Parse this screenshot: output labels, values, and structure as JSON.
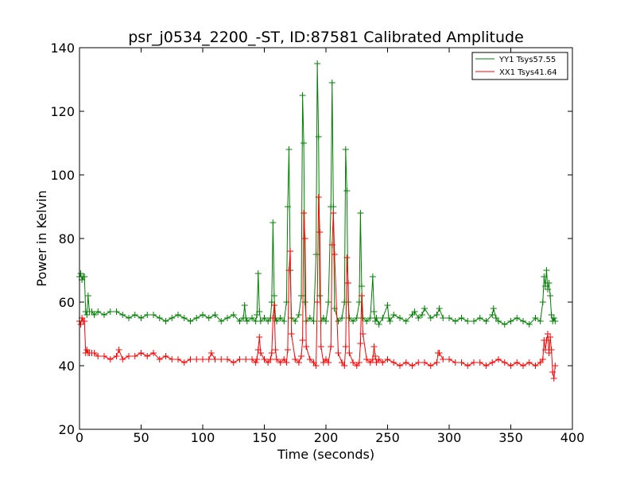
{
  "chart_data": {
    "type": "line",
    "title": "psr_j0534_2200_-ST, ID:87581 Calibrated Amplitude",
    "xlabel": "Time (seconds)",
    "ylabel": "Power in Kelvin",
    "xlim": [
      0,
      400
    ],
    "ylim": [
      20,
      140
    ],
    "xticks": [
      0,
      50,
      100,
      150,
      200,
      250,
      300,
      350,
      400
    ],
    "yticks": [
      20,
      40,
      60,
      80,
      100,
      120,
      140
    ],
    "xtick_labels": [
      "0",
      "50",
      "100",
      "150",
      "200",
      "250",
      "300",
      "350",
      "400"
    ],
    "ytick_labels": [
      "20",
      "40",
      "60",
      "80",
      "100",
      "120",
      "140"
    ],
    "grid": false,
    "legend_position": "top-right",
    "marker": "+",
    "series": [
      {
        "name": "YY1 Tsys57.55",
        "color": "#008000",
        "x": [
          0,
          1,
          2,
          3,
          4,
          5,
          6,
          7,
          8,
          10,
          12,
          15,
          20,
          25,
          30,
          35,
          40,
          45,
          50,
          55,
          60,
          65,
          70,
          75,
          80,
          85,
          90,
          95,
          100,
          105,
          110,
          115,
          120,
          125,
          130,
          133,
          134,
          135,
          136,
          140,
          143,
          144,
          145,
          146,
          147,
          150,
          153,
          155,
          156,
          157,
          158,
          159,
          160,
          163,
          166,
          168,
          169,
          170,
          171,
          172,
          175,
          178,
          180,
          181,
          182,
          183,
          184,
          187,
          190,
          192,
          193,
          194,
          195,
          196,
          198,
          200,
          202,
          204,
          205,
          206,
          207,
          210,
          213,
          215,
          216,
          217,
          218,
          219,
          222,
          225,
          227,
          228,
          229,
          230,
          233,
          236,
          238,
          239,
          240,
          241,
          243,
          246,
          250,
          251,
          252,
          255,
          260,
          265,
          270,
          272,
          275,
          278,
          280,
          285,
          290,
          292,
          295,
          300,
          305,
          310,
          315,
          320,
          325,
          330,
          335,
          336,
          338,
          340,
          345,
          350,
          355,
          360,
          365,
          370,
          374,
          376,
          377,
          378,
          379,
          380,
          381,
          382,
          383,
          384,
          385,
          386
        ],
        "y": [
          68,
          69,
          67,
          68,
          68,
          57,
          56,
          62,
          57,
          57,
          56,
          57,
          56,
          57,
          57,
          56,
          55,
          56,
          55,
          56,
          56,
          55,
          54,
          55,
          56,
          55,
          54,
          55,
          56,
          55,
          56,
          54,
          55,
          56,
          54,
          55,
          59,
          55,
          54,
          55,
          54,
          56,
          69,
          57,
          54,
          55,
          54,
          55,
          60,
          85,
          62,
          55,
          54,
          55,
          54,
          60,
          90,
          108,
          70,
          55,
          54,
          56,
          62,
          125,
          110,
          60,
          54,
          55,
          54,
          75,
          135,
          112,
          62,
          54,
          55,
          54,
          60,
          90,
          129,
          90,
          58,
          54,
          55,
          60,
          108,
          95,
          60,
          55,
          54,
          55,
          60,
          88,
          65,
          55,
          54,
          55,
          68,
          57,
          54,
          55,
          53,
          55,
          59,
          55,
          54,
          56,
          55,
          54,
          56,
          57,
          55,
          56,
          58,
          55,
          56,
          58,
          55,
          55,
          54,
          55,
          54,
          54,
          55,
          54,
          56,
          58,
          55,
          54,
          53,
          54,
          55,
          54,
          53,
          55,
          54,
          60,
          68,
          65,
          70,
          64,
          66,
          62,
          56,
          54,
          55,
          54
        ]
      },
      {
        "name": "XX1 Tsys41.64",
        "color": "#ff0000",
        "x": [
          0,
          1,
          2,
          3,
          4,
          5,
          6,
          7,
          8,
          10,
          12,
          15,
          20,
          25,
          30,
          32,
          35,
          40,
          45,
          50,
          55,
          60,
          65,
          70,
          75,
          80,
          85,
          90,
          95,
          100,
          105,
          107,
          110,
          115,
          120,
          125,
          130,
          135,
          140,
          143,
          144,
          145,
          146,
          147,
          150,
          153,
          155,
          156,
          157,
          158,
          159,
          160,
          163,
          166,
          168,
          169,
          170,
          171,
          172,
          175,
          178,
          180,
          181,
          182,
          183,
          184,
          187,
          190,
          192,
          193,
          194,
          195,
          196,
          198,
          200,
          202,
          204,
          205,
          206,
          207,
          210,
          213,
          215,
          216,
          217,
          218,
          219,
          222,
          225,
          227,
          228,
          229,
          230,
          233,
          236,
          238,
          239,
          240,
          241,
          243,
          246,
          250,
          255,
          260,
          265,
          270,
          275,
          280,
          285,
          290,
          291,
          292,
          295,
          300,
          305,
          310,
          315,
          320,
          325,
          330,
          335,
          340,
          345,
          350,
          355,
          360,
          365,
          370,
          374,
          376,
          377,
          378,
          379,
          380,
          381,
          382,
          383,
          384,
          385,
          386
        ],
        "y": [
          54,
          53,
          55,
          54,
          54,
          44,
          45,
          44,
          44,
          44,
          44,
          43,
          43,
          42,
          43,
          45,
          42,
          43,
          43,
          44,
          43,
          44,
          42,
          43,
          42,
          42,
          41,
          42,
          42,
          42,
          42,
          44,
          42,
          42,
          42,
          41,
          42,
          42,
          42,
          41,
          42,
          45,
          49,
          44,
          42,
          41,
          42,
          44,
          55,
          59,
          45,
          42,
          41,
          42,
          41,
          45,
          70,
          76,
          50,
          42,
          41,
          43,
          48,
          88,
          80,
          46,
          42,
          41,
          40,
          60,
          93,
          82,
          46,
          41,
          42,
          41,
          46,
          78,
          88,
          75,
          44,
          41,
          40,
          46,
          74,
          66,
          44,
          41,
          40,
          41,
          47,
          62,
          50,
          42,
          41,
          42,
          46,
          43,
          41,
          42,
          41,
          42,
          41,
          40,
          41,
          40,
          41,
          41,
          40,
          41,
          44,
          44,
          42,
          42,
          41,
          41,
          40,
          41,
          41,
          40,
          41,
          42,
          41,
          40,
          41,
          40,
          41,
          40,
          41,
          42,
          48,
          45,
          48,
          50,
          44,
          49,
          45,
          38,
          36,
          40
        ]
      }
    ]
  }
}
